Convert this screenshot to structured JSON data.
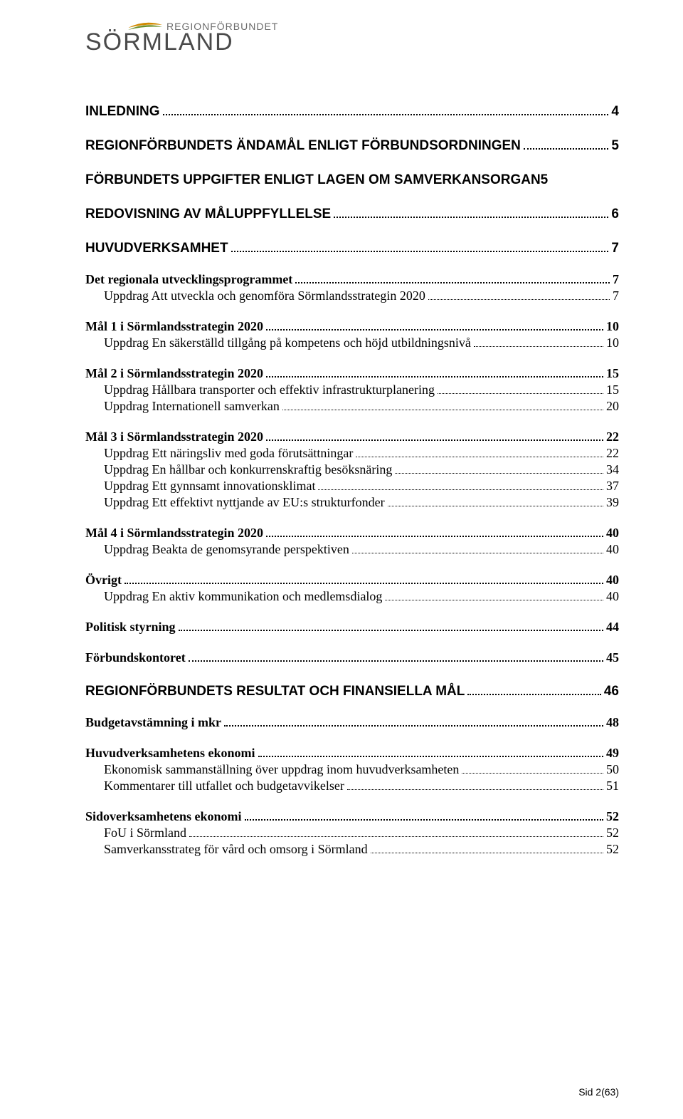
{
  "logo": {
    "top_text": "REGIONFÖRBUNDET",
    "main_text": "SÖRMLAND",
    "swoosh_colors": [
      "#d18a00",
      "#6a8f2a"
    ]
  },
  "colors": {
    "text": "#000000",
    "logo_grey": "#6b6b6b",
    "logo_main_grey": "#4a4a4a",
    "background": "#ffffff"
  },
  "typography": {
    "body_family": "Times New Roman",
    "heading_family": "Arial",
    "lvl1_size_pt": 14,
    "lvl2_size_pt": 13,
    "lvl3_size_pt": 13
  },
  "toc": [
    {
      "level": 1,
      "label": "INLEDNING",
      "page": "4"
    },
    {
      "level": 1,
      "label": "REGIONFÖRBUNDETS ÄNDAMÅL ENLIGT FÖRBUNDSORDNINGEN",
      "page": "5"
    },
    {
      "level": 1,
      "label": "FÖRBUNDETS UPPGIFTER ENLIGT LAGEN OM SAMVERKANSORGAN5",
      "page": ""
    },
    {
      "level": 1,
      "label": "REDOVISNING AV MÅLUPPFYLLELSE",
      "page": "6"
    },
    {
      "level": 1,
      "label": "HUVUDVERKSAMHET",
      "page": "7"
    },
    {
      "level": 2,
      "label": "Det regionala utvecklingsprogrammet",
      "page": "7"
    },
    {
      "level": 3,
      "label": "Uppdrag Att utveckla och genomföra Sörmlandsstrategin 2020",
      "page": "7"
    },
    {
      "level": 2,
      "label": "Mål 1 i Sörmlandsstrategin 2020",
      "page": "10"
    },
    {
      "level": 3,
      "label": "Uppdrag En säkerställd tillgång på kompetens och höjd utbildningsnivå",
      "page": "10"
    },
    {
      "level": 2,
      "label": "Mål 2 i Sörmlandsstrategin 2020",
      "page": "15"
    },
    {
      "level": 3,
      "label": "Uppdrag Hållbara transporter och effektiv infrastrukturplanering",
      "page": "15"
    },
    {
      "level": 3,
      "label": "Uppdrag Internationell samverkan",
      "page": "20"
    },
    {
      "level": 2,
      "label": "Mål 3 i Sörmlandsstrategin 2020",
      "page": "22"
    },
    {
      "level": 3,
      "label": "Uppdrag Ett näringsliv med goda förutsättningar",
      "page": "22"
    },
    {
      "level": 3,
      "label": "Uppdrag En hållbar och konkurrenskraftig besöksnäring",
      "page": "34"
    },
    {
      "level": 3,
      "label": "Uppdrag Ett gynnsamt innovationsklimat",
      "page": "37"
    },
    {
      "level": 3,
      "label": "Uppdrag Ett effektivt nyttjande av EU:s strukturfonder",
      "page": "39"
    },
    {
      "level": 2,
      "label": "Mål 4 i Sörmlandsstrategin 2020",
      "page": "40"
    },
    {
      "level": 3,
      "label": "Uppdrag Beakta de genomsyrande perspektiven",
      "page": "40"
    },
    {
      "level": 2,
      "label": "Övrigt",
      "page": "40"
    },
    {
      "level": 3,
      "label": "Uppdrag En aktiv kommunikation och medlemsdialog",
      "page": "40"
    },
    {
      "level": 2,
      "label": "Politisk styrning",
      "page": "44"
    },
    {
      "level": 2,
      "label": "Förbundskontoret",
      "page": "45"
    },
    {
      "level": 1,
      "label": "REGIONFÖRBUNDETS RESULTAT OCH FINANSIELLA MÅL",
      "page": "46"
    },
    {
      "level": 2,
      "label": "Budgetavstämning i mkr",
      "page": "48"
    },
    {
      "level": 2,
      "label": "Huvudverksamhetens ekonomi",
      "page": "49"
    },
    {
      "level": 3,
      "label": "Ekonomisk sammanställning över uppdrag inom huvudverksamheten",
      "page": "50"
    },
    {
      "level": 3,
      "label": "Kommentarer till utfallet och budgetavvikelser",
      "page": "51"
    },
    {
      "level": 2,
      "label": "Sidoverksamhetens ekonomi",
      "page": "52"
    },
    {
      "level": 3,
      "label": "FoU i Sörmland",
      "page": "52"
    },
    {
      "level": 3,
      "label": "Samverkansstrateg för vård och omsorg i Sörmland",
      "page": "52"
    }
  ],
  "footer": "Sid 2(63)"
}
